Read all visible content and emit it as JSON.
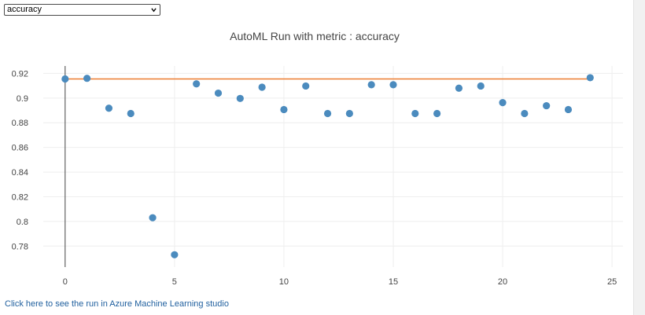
{
  "selector": {
    "value": "accuracy",
    "icon": "chevron-down-icon"
  },
  "link_text": "Click here to see the run in Azure Machine Learning studio",
  "colors": {
    "points": "#4b8bbe",
    "best_line": "#ed7d31",
    "grid": "#eeeeee",
    "link": "#1f5f9e"
  },
  "chart_data": {
    "type": "scatter",
    "title": "AutoML Run with metric : accuracy",
    "xlabel": "",
    "ylabel": "",
    "xlim": [
      -1,
      25.5
    ],
    "ylim": [
      0.763,
      0.926
    ],
    "x_ticks": [
      0,
      5,
      10,
      15,
      20,
      25
    ],
    "y_ticks": [
      0.78,
      0.8,
      0.82,
      0.84,
      0.86,
      0.88,
      0.9,
      0.92
    ],
    "x_tick_labels": [
      "0",
      "5",
      "10",
      "15",
      "20",
      "25"
    ],
    "y_tick_labels": [
      "0.78",
      "0.8",
      "0.82",
      "0.84",
      "0.86",
      "0.88",
      "0.9",
      "0.92"
    ],
    "grid": true,
    "series": [
      {
        "type": "markers",
        "x": [
          0,
          1,
          2,
          3,
          4,
          5,
          6,
          7,
          8,
          9,
          10,
          11,
          12,
          13,
          14,
          15,
          16,
          17,
          18,
          19,
          20,
          21,
          22,
          23,
          24
        ],
        "y": [
          0.9155,
          0.916,
          0.8918,
          0.8875,
          0.803,
          0.773,
          0.9115,
          0.904,
          0.8997,
          0.9088,
          0.8907,
          0.9098,
          0.8875,
          0.8875,
          0.9108,
          0.9108,
          0.8875,
          0.8875,
          0.908,
          0.9098,
          0.8963,
          0.8875,
          0.8938,
          0.8907,
          0.9165
        ]
      },
      {
        "type": "line",
        "x": [
          0,
          24
        ],
        "y": [
          0.9155,
          0.9155
        ]
      }
    ]
  }
}
